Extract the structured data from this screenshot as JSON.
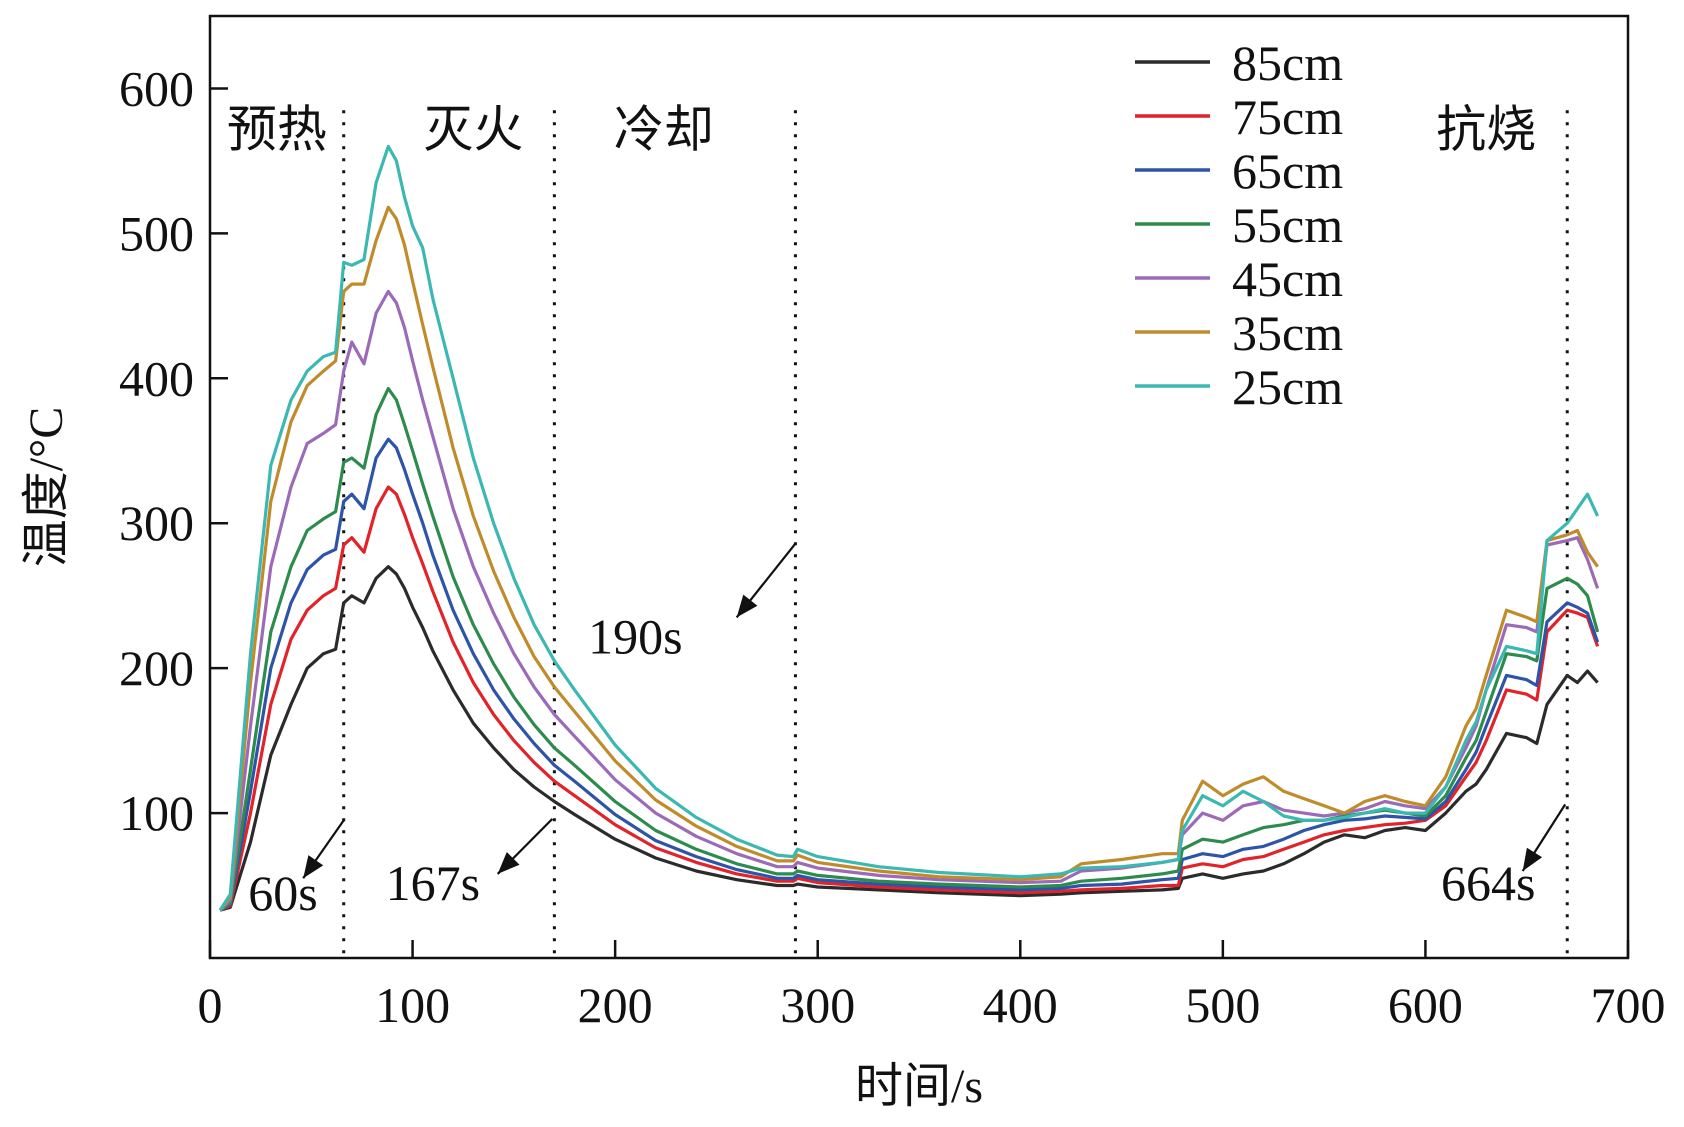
{
  "chart_data": {
    "type": "line",
    "title": "",
    "xlabel": "时间/s",
    "ylabel": "温度/°C",
    "xlim": [
      0,
      700
    ],
    "ylim": [
      0,
      650
    ],
    "x_ticks": [
      0,
      100,
      200,
      300,
      400,
      500,
      600,
      700
    ],
    "x_tick_labels": [
      "0",
      "100",
      "200",
      "300",
      "400",
      "500",
      "600",
      "700"
    ],
    "y_ticks": [
      100,
      200,
      300,
      400,
      500,
      600
    ],
    "y_tick_labels": [
      "100",
      "200",
      "300",
      "400",
      "500",
      "600"
    ],
    "grid": false,
    "legend_position": "top-right",
    "phase_boundaries": [
      66,
      170,
      289,
      670
    ],
    "phases": [
      {
        "label": "预热",
        "x": 33
      },
      {
        "label": "灭火",
        "x": 130
      },
      {
        "label": "冷却",
        "x": 224
      },
      {
        "label": "抗烧",
        "x": 630
      }
    ],
    "annotations": [
      {
        "label": "60s",
        "text_x": 36,
        "text_y": 33,
        "arrow_from": [
          66,
          95
        ],
        "arrow_to": [
          46,
          55
        ]
      },
      {
        "label": "167s",
        "text_x": 110,
        "text_y": 40,
        "arrow_from": [
          169,
          96
        ],
        "arrow_to": [
          142,
          58
        ]
      },
      {
        "label": "190s",
        "text_x": 210,
        "text_y": 210,
        "arrow_from": [
          289,
          286
        ],
        "arrow_to": [
          260,
          235
        ]
      },
      {
        "label": "664s",
        "text_x": 631,
        "text_y": 40,
        "arrow_from": [
          669,
          106
        ],
        "arrow_to": [
          648,
          60
        ]
      }
    ],
    "x": [
      5,
      10,
      20,
      30,
      40,
      48,
      56,
      62,
      66,
      70,
      76,
      82,
      88,
      92,
      96,
      100,
      105,
      110,
      120,
      130,
      140,
      150,
      160,
      170,
      180,
      200,
      220,
      240,
      260,
      280,
      288,
      290,
      300,
      330,
      360,
      400,
      420,
      430,
      450,
      470,
      478,
      480,
      490,
      500,
      510,
      520,
      530,
      540,
      550,
      560,
      570,
      580,
      590,
      600,
      610,
      620,
      625,
      630,
      640,
      650,
      655,
      660,
      670,
      675,
      680,
      685
    ],
    "series": [
      {
        "name": "85cm",
        "color": "#2b2b2b",
        "values": [
          33,
          35,
          80,
          140,
          175,
          200,
          210,
          213,
          245,
          250,
          245,
          262,
          270,
          265,
          255,
          242,
          228,
          212,
          185,
          162,
          145,
          130,
          118,
          108,
          99,
          82,
          69,
          60,
          54,
          50,
          50,
          51,
          49,
          47,
          45,
          43,
          44,
          45,
          46,
          47,
          48,
          55,
          58,
          55,
          58,
          60,
          65,
          72,
          80,
          85,
          83,
          88,
          90,
          88,
          100,
          115,
          120,
          130,
          155,
          152,
          148,
          175,
          195,
          190,
          198,
          190
        ]
      },
      {
        "name": "75cm",
        "color": "#e0242a",
        "values": [
          33,
          36,
          100,
          175,
          220,
          240,
          250,
          255,
          285,
          290,
          280,
          310,
          325,
          320,
          306,
          290,
          272,
          253,
          218,
          190,
          168,
          150,
          135,
          122,
          112,
          92,
          76,
          66,
          58,
          53,
          53,
          55,
          52,
          49,
          47,
          45,
          46,
          47,
          48,
          50,
          50,
          62,
          65,
          63,
          68,
          70,
          75,
          80,
          85,
          88,
          90,
          92,
          93,
          95,
          105,
          125,
          135,
          150,
          185,
          182,
          178,
          225,
          240,
          238,
          235,
          215
        ]
      },
      {
        "name": "65cm",
        "color": "#2d54a8",
        "values": [
          33,
          37,
          115,
          200,
          245,
          268,
          278,
          282,
          315,
          320,
          310,
          345,
          358,
          352,
          337,
          320,
          300,
          278,
          240,
          210,
          185,
          165,
          148,
          133,
          122,
          99,
          81,
          70,
          61,
          55,
          55,
          57,
          54,
          51,
          49,
          47,
          48,
          50,
          51,
          54,
          55,
          68,
          72,
          70,
          75,
          77,
          82,
          88,
          92,
          95,
          96,
          98,
          97,
          96,
          108,
          130,
          142,
          160,
          195,
          192,
          188,
          232,
          245,
          242,
          238,
          218
        ]
      },
      {
        "name": "55cm",
        "color": "#2e8b4e",
        "values": [
          33,
          38,
          130,
          225,
          270,
          295,
          303,
          308,
          342,
          345,
          338,
          375,
          393,
          385,
          368,
          350,
          327,
          305,
          263,
          230,
          203,
          180,
          161,
          145,
          133,
          108,
          88,
          75,
          65,
          58,
          58,
          60,
          57,
          53,
          51,
          49,
          50,
          53,
          55,
          58,
          60,
          75,
          82,
          80,
          85,
          90,
          92,
          95,
          95,
          98,
          100,
          102,
          100,
          98,
          112,
          138,
          150,
          170,
          210,
          208,
          205,
          255,
          262,
          258,
          250,
          225
        ]
      },
      {
        "name": "45cm",
        "color": "#9b6bb8",
        "values": [
          33,
          40,
          160,
          270,
          325,
          355,
          362,
          368,
          405,
          425,
          410,
          445,
          460,
          452,
          435,
          412,
          385,
          360,
          310,
          270,
          238,
          210,
          187,
          168,
          153,
          123,
          100,
          84,
          72,
          63,
          63,
          66,
          62,
          57,
          54,
          52,
          53,
          60,
          62,
          66,
          68,
          85,
          100,
          95,
          105,
          108,
          102,
          100,
          98,
          100,
          103,
          108,
          105,
          103,
          118,
          145,
          160,
          185,
          230,
          228,
          225,
          285,
          288,
          290,
          275,
          255
        ]
      },
      {
        "name": "35cm",
        "color": "#c08b2a",
        "values": [
          33,
          42,
          190,
          315,
          370,
          395,
          405,
          412,
          460,
          465,
          465,
          495,
          518,
          510,
          492,
          467,
          437,
          408,
          352,
          305,
          267,
          235,
          208,
          187,
          170,
          136,
          109,
          91,
          77,
          67,
          67,
          71,
          66,
          60,
          56,
          54,
          56,
          65,
          68,
          72,
          72,
          95,
          122,
          112,
          120,
          125,
          115,
          110,
          105,
          100,
          108,
          112,
          108,
          105,
          125,
          160,
          172,
          195,
          240,
          235,
          232,
          288,
          292,
          295,
          280,
          270
        ]
      },
      {
        "name": "25cm",
        "color": "#3bb8b2",
        "values": [
          33,
          44,
          210,
          340,
          385,
          405,
          415,
          418,
          480,
          478,
          482,
          535,
          560,
          550,
          525,
          505,
          490,
          455,
          400,
          345,
          300,
          262,
          230,
          205,
          185,
          147,
          117,
          97,
          82,
          71,
          70,
          75,
          70,
          63,
          59,
          56,
          58,
          62,
          63,
          66,
          68,
          88,
          112,
          105,
          115,
          108,
          98,
          95,
          95,
          97,
          100,
          103,
          100,
          100,
          118,
          150,
          163,
          185,
          215,
          212,
          210,
          288,
          300,
          310,
          320,
          305
        ]
      }
    ]
  }
}
